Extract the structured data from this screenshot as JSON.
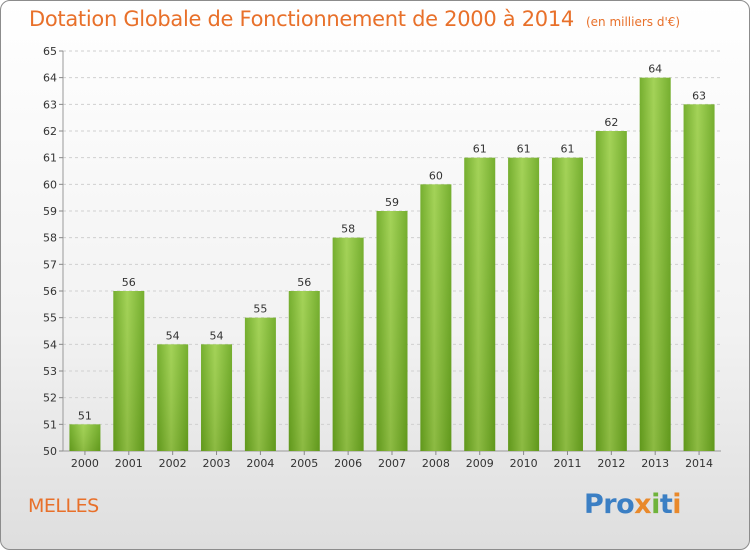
{
  "chart_data": {
    "type": "bar",
    "title": "Dotation Globale de Fonctionnement de 2000 à 2014",
    "subtitle": "(en milliers d'€)",
    "categories": [
      "2000",
      "2001",
      "2002",
      "2003",
      "2004",
      "2005",
      "2006",
      "2007",
      "2008",
      "2009",
      "2010",
      "2011",
      "2012",
      "2013",
      "2014"
    ],
    "values": [
      51,
      56,
      54,
      54,
      55,
      56,
      58,
      59,
      60,
      61,
      61,
      61,
      62,
      64,
      63
    ],
    "ylim": [
      50,
      65
    ],
    "yticks": [
      50,
      51,
      52,
      53,
      54,
      55,
      56,
      57,
      58,
      59,
      60,
      61,
      62,
      63,
      64,
      65
    ],
    "grid": true,
    "bar_color": "#7ab828"
  },
  "footer": {
    "place": "MELLES",
    "logo": [
      "Pro",
      "x",
      "i",
      "t",
      "i"
    ]
  }
}
